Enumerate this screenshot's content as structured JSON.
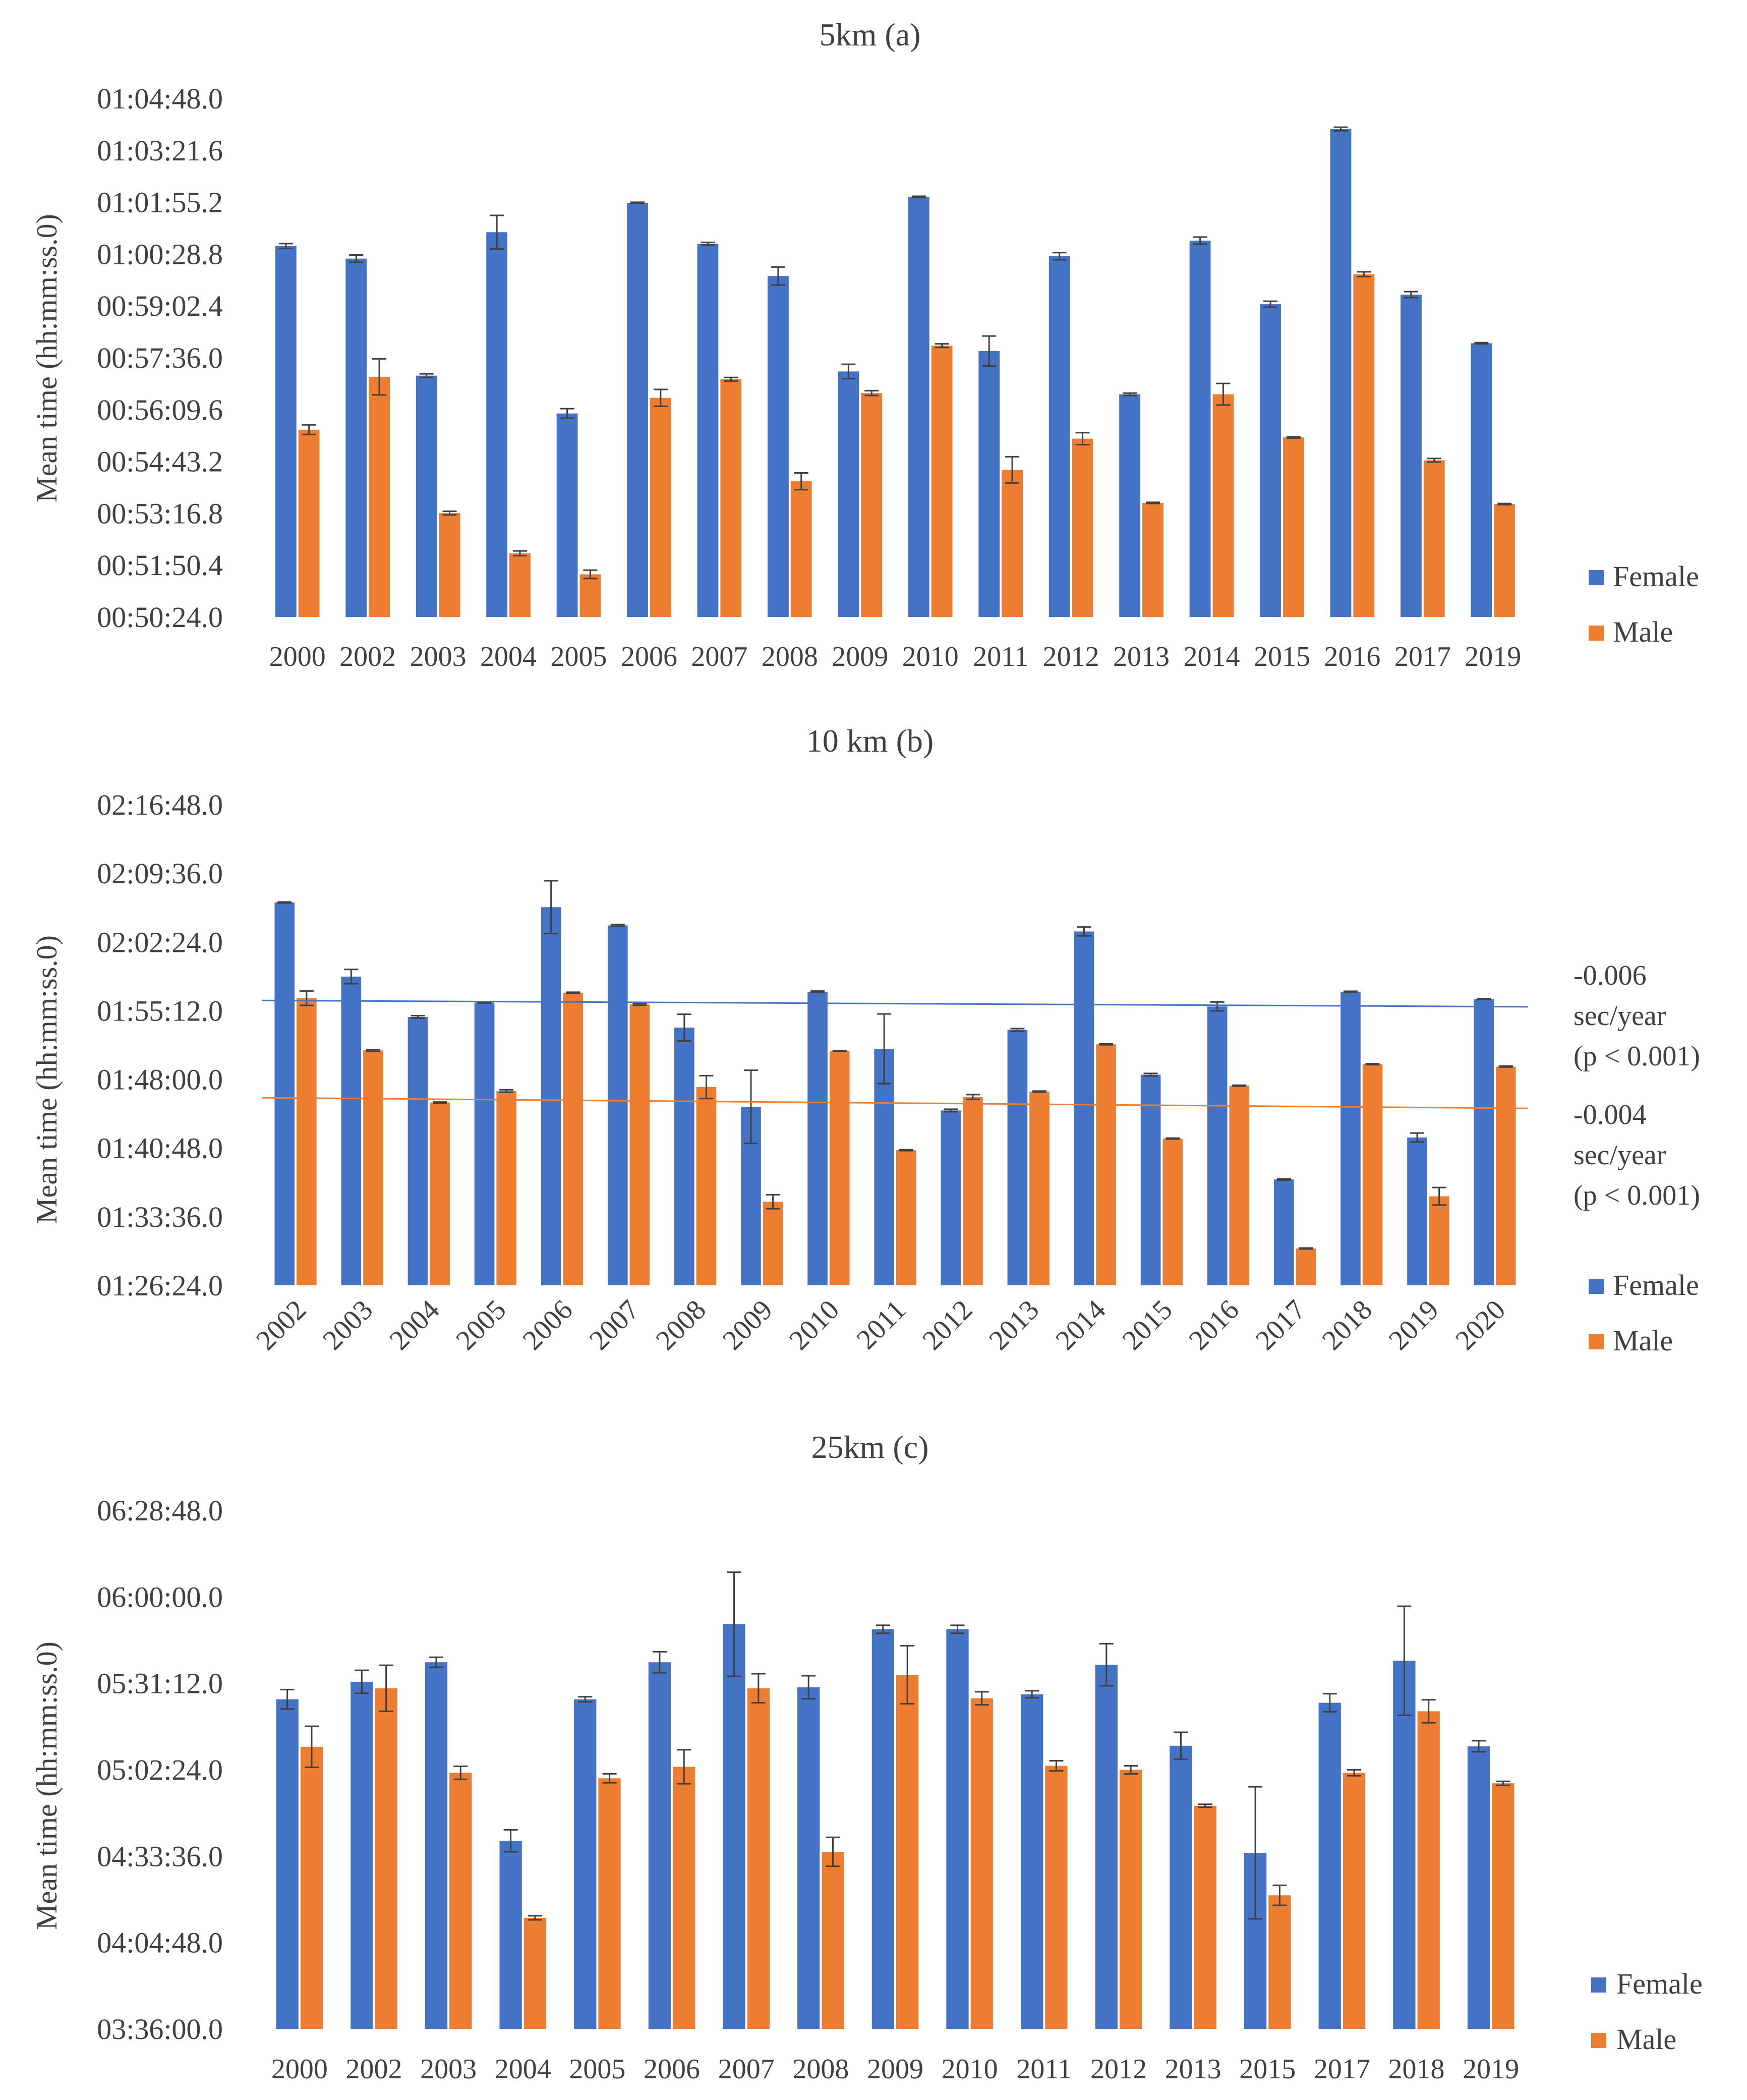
{
  "colors": {
    "female": "#4472C4",
    "male": "#ED7D31",
    "female_trend": "#4472C4",
    "male_trend": "#ED7D31",
    "errorbar": "#404040",
    "text": "#404040"
  },
  "chart_data": [
    {
      "type": "bar",
      "title": "5km (a)",
      "ylabel": "Mean time (hh:mm:ss.0)",
      "xlabel": "",
      "ylim": [
        3024,
        3888
      ],
      "yticks": [
        3024,
        3110.4,
        3196.8,
        3283.2,
        3369.6,
        3456,
        3542.4,
        3628.8,
        3715.2,
        3801.6,
        3888
      ],
      "ytick_labels": [
        "00:50:24.0",
        "00:51:50.4",
        "00:53:16.8",
        "00:54:43.2",
        "00:56:09.6",
        "00:57:36.0",
        "00:59:02.4",
        "01:00:28.8",
        "01:01:55.2",
        "01:03:21.6",
        "01:04:48.0"
      ],
      "categories": [
        "2000",
        "2002",
        "2003",
        "2004",
        "2005",
        "2006",
        "2007",
        "2008",
        "2009",
        "2010",
        "2011",
        "2012",
        "2013",
        "2014",
        "2015",
        "2016",
        "2017",
        "2019"
      ],
      "series": [
        {
          "name": "Female",
          "values": [
            3642,
            3621,
            3426,
            3665,
            3363,
            3714,
            3646,
            3592,
            3433,
            3724,
            3467,
            3625,
            3395,
            3651,
            3545,
            3837,
            3561,
            3480
          ],
          "errors": [
            4,
            6,
            3,
            28,
            8,
            1,
            2,
            15,
            12,
            1,
            25,
            6,
            2,
            6,
            5,
            3,
            5,
            1
          ]
        },
        {
          "name": "Male",
          "values": [
            3336,
            3424,
            3197,
            3130,
            3095,
            3389,
            3420,
            3250,
            3397,
            3476,
            3269,
            3321,
            3214,
            3395,
            3323,
            3595,
            3285,
            3212
          ],
          "errors": [
            8,
            30,
            3,
            4,
            7,
            14,
            3,
            14,
            4,
            3,
            22,
            10,
            1,
            18,
            1,
            4,
            3,
            1
          ]
        }
      ],
      "legend": [
        "Female",
        "Male"
      ],
      "legend_position": "right",
      "trendlines": []
    },
    {
      "type": "bar",
      "title": "10 km (b)",
      "ylabel": "Mean time (hh:mm:ss.0)",
      "xlabel": "",
      "ylim": [
        5184,
        8208
      ],
      "yticks": [
        5184,
        5616,
        6048,
        6480,
        6912,
        7344,
        7776,
        8208
      ],
      "ytick_labels": [
        "01:26:24.0",
        "01:33:36.0",
        "01:40:48.0",
        "01:48:00.0",
        "01:55:12.0",
        "02:02:24.0",
        "02:09:36.0",
        "02:16:48.0"
      ],
      "categories": [
        "2002",
        "2003",
        "2004",
        "2005",
        "2006",
        "2007",
        "2008",
        "2009",
        "2010",
        "2011",
        "2012",
        "2013",
        "2014",
        "2015",
        "2016",
        "2017",
        "2018",
        "2019",
        "2020"
      ],
      "series": [
        {
          "name": "Female",
          "values": [
            7592,
            7126,
            6872,
            6963,
            7563,
            7448,
            6805,
            6307,
            7031,
            6672,
            6284,
            6791,
            7410,
            6509,
            6938,
            5850,
            7031,
            6114,
            6985
          ],
          "errors": [
            3,
            45,
            8,
            3,
            166,
            5,
            84,
            230,
            4,
            219,
            8,
            8,
            28,
            8,
            28,
            4,
            3,
            28,
            3
          ],
          "trend": [
            6976,
            6936
          ]
        },
        {
          "name": "Male",
          "values": [
            6990,
            6662,
            6334,
            6406,
            7025,
            6951,
            6431,
            5710,
            6658,
            6034,
            6369,
            6403,
            6700,
            6107,
            6440,
            5416,
            6575,
            5744,
            6560
          ],
          "errors": [
            45,
            5,
            3,
            8,
            3,
            5,
            72,
            44,
            3,
            3,
            15,
            3,
            3,
            3,
            3,
            3,
            3,
            55,
            3
          ],
          "trend": [
            6364,
            6297
          ]
        }
      ],
      "annotations": [
        {
          "line1": "-0.006",
          "line2": "sec/year",
          "line3": "(p < 0.001)"
        },
        {
          "line1": "-0.004",
          "line2": "sec/year",
          "line3": "(p < 0.001)"
        }
      ],
      "legend": [
        "Female",
        "Male"
      ],
      "legend_position": "right"
    },
    {
      "type": "bar",
      "title": "25km (c)",
      "ylabel": "Mean time (hh:mm:ss.0)",
      "xlabel": "",
      "ylim": [
        12960,
        23328
      ],
      "yticks": [
        12960,
        14688,
        16416,
        18144,
        19872,
        21600,
        23328
      ],
      "ytick_labels": [
        "03:36:00.0",
        "04:04:48.0",
        "04:33:36.0",
        "05:02:24.0",
        "05:31:12.0",
        "06:00:00.0",
        "06:28:48.0"
      ],
      "categories": [
        "2000",
        "2002",
        "2003",
        "2004",
        "2005",
        "2006",
        "2007",
        "2008",
        "2009",
        "2010",
        "2011",
        "2012",
        "2013",
        "2015",
        "2017",
        "2018",
        "2019"
      ],
      "series": [
        {
          "name": "Female",
          "values": [
            19550,
            19900,
            20290,
            16720,
            19550,
            20290,
            21050,
            19790,
            20950,
            20950,
            19650,
            20240,
            18620,
            16480,
            19480,
            20320,
            18610
          ],
          "errors": [
            194,
            230,
            100,
            220,
            50,
            210,
            1040,
            230,
            80,
            80,
            70,
            420,
            270,
            1320,
            180,
            1090,
            110
          ],
          "trend": []
        },
        {
          "name": "Male",
          "values": [
            18600,
            19770,
            18080,
            15180,
            17970,
            18200,
            19770,
            16500,
            20040,
            19570,
            18220,
            18140,
            17420,
            15630,
            18080,
            19310,
            17870
          ],
          "errors": [
            410,
            460,
            130,
            40,
            90,
            340,
            290,
            290,
            580,
            130,
            100,
            80,
            30,
            200,
            60,
            230,
            40
          ],
          "trend": []
        }
      ],
      "legend": [
        "Female",
        "Male"
      ],
      "legend_position": "right",
      "trendlines": []
    }
  ]
}
